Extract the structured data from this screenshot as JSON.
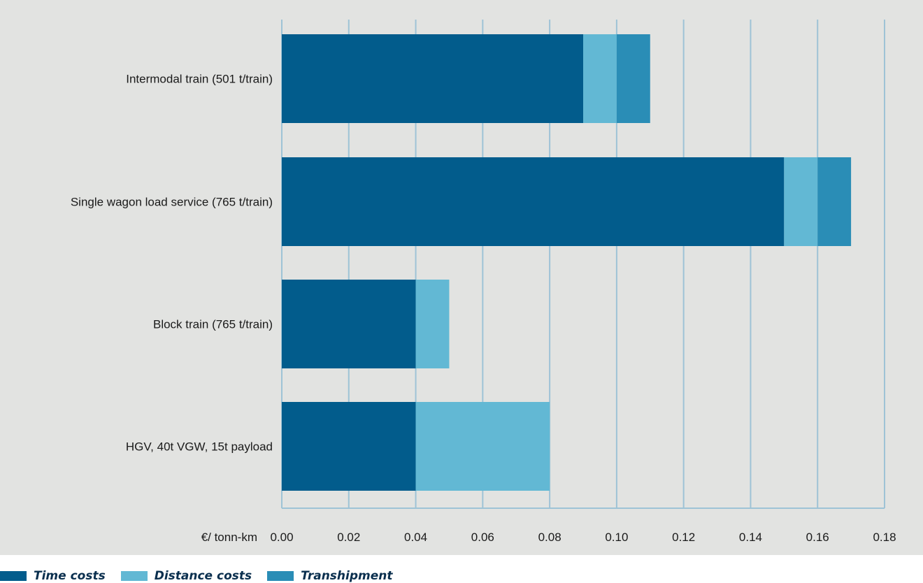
{
  "chart_data": {
    "type": "bar",
    "orientation": "horizontal",
    "stacked": true,
    "title": "",
    "xlabel": "€/ tonn-km",
    "ylabel": "",
    "xlim": [
      0,
      0.18
    ],
    "x_ticks": [
      "0.00",
      "0.02",
      "0.04",
      "0.06",
      "0.08",
      "0.10",
      "0.12",
      "0.14",
      "0.16",
      "0.18"
    ],
    "categories": [
      "Intermodal train (501 t/train)",
      "Single wagon load service (765 t/train)",
      "Block train (765 t/train)",
      "HGV, 40t VGW, 15t payload"
    ],
    "series": [
      {
        "name": "Time costs",
        "color": "#025c8c",
        "values": [
          0.09,
          0.15,
          0.04,
          0.04
        ]
      },
      {
        "name": "Distance costs",
        "color": "#62b8d4",
        "values": [
          0.01,
          0.01,
          0.01,
          0.04
        ]
      },
      {
        "name": "Transhipment",
        "color": "#2a8db6",
        "values": [
          0.01,
          0.01,
          0,
          0
        ]
      }
    ],
    "grid": "vertical",
    "legend_position": "bottom-left",
    "background": "#e2e3e1",
    "gridline_color": "#9ec3d6"
  }
}
